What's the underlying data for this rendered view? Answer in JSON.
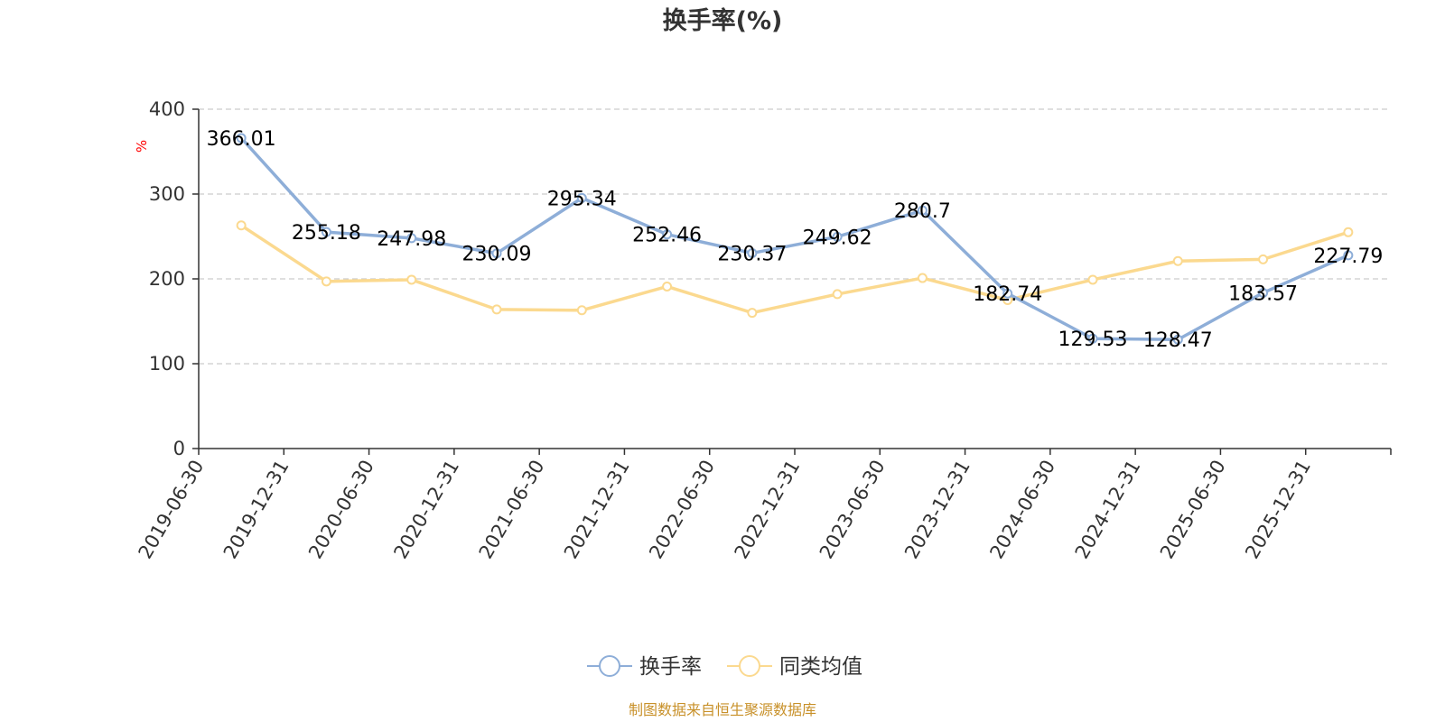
{
  "chart_data": {
    "type": "line",
    "title": "换手率(%)",
    "ylabel": "%",
    "xlabel": "",
    "ylim": [
      0,
      400
    ],
    "yticks": [
      0,
      100,
      200,
      300,
      400
    ],
    "grid": true,
    "legend_position": "bottom-center",
    "categories": [
      "2019-06-30",
      "2019-12-31",
      "2020-06-30",
      "2020-12-31",
      "2021-06-30",
      "2021-12-31",
      "2022-06-30",
      "2022-12-31",
      "2023-06-30",
      "2023-12-31",
      "2024-06-30",
      "2024-12-31",
      "2025-06-30",
      "2025-12-31"
    ],
    "series": [
      {
        "name": "换手率",
        "color": "#8eaed8",
        "show_labels": true,
        "values": [
          366.01,
          255.18,
          247.98,
          230.09,
          295.34,
          252.46,
          230.37,
          249.62,
          280.7,
          182.74,
          129.53,
          128.47,
          183.57,
          227.79
        ],
        "labels": [
          "366.01",
          "255.18",
          "247.98",
          "230.09",
          "295.34",
          "252.46",
          "230.37",
          "249.62",
          "280.7",
          "182.74",
          "129.53",
          "128.47",
          "183.57",
          "227.79"
        ]
      },
      {
        "name": "同类均值",
        "color": "#fbd98f",
        "show_labels": false,
        "values": [
          263,
          197,
          199,
          164,
          163,
          191,
          160,
          182,
          201,
          175,
          199,
          221,
          223,
          255
        ]
      }
    ],
    "source": "制图数据来自恒生聚源数据库"
  }
}
